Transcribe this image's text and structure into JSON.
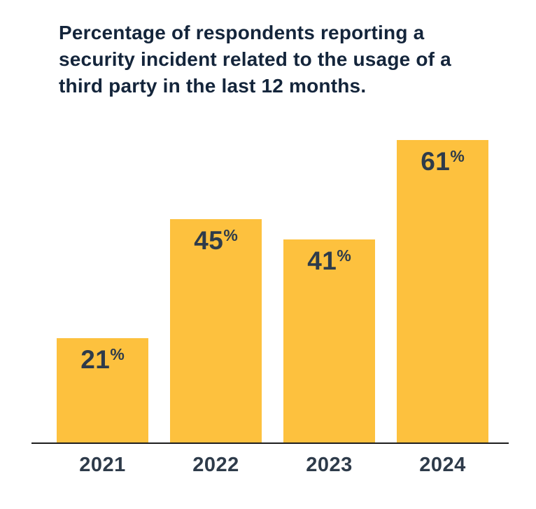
{
  "chart_data": {
    "type": "bar",
    "title": "Percentage of respondents reporting a\nsecurity incident related to the usage of a\nthird party in the last 12 months.",
    "categories": [
      "2021",
      "2022",
      "2023",
      "2024"
    ],
    "values": [
      21,
      45,
      41,
      61
    ],
    "value_suffix": "%",
    "xlabel": "",
    "ylabel": "",
    "ylim": [
      0,
      65
    ],
    "grid": false,
    "legend": "none",
    "colors": {
      "bar": "#FDC13E",
      "title_text": "#14253B",
      "label_text": "#2E3B4A",
      "axis_line": "#1D1D1D",
      "background": "#FFFFFF"
    }
  }
}
